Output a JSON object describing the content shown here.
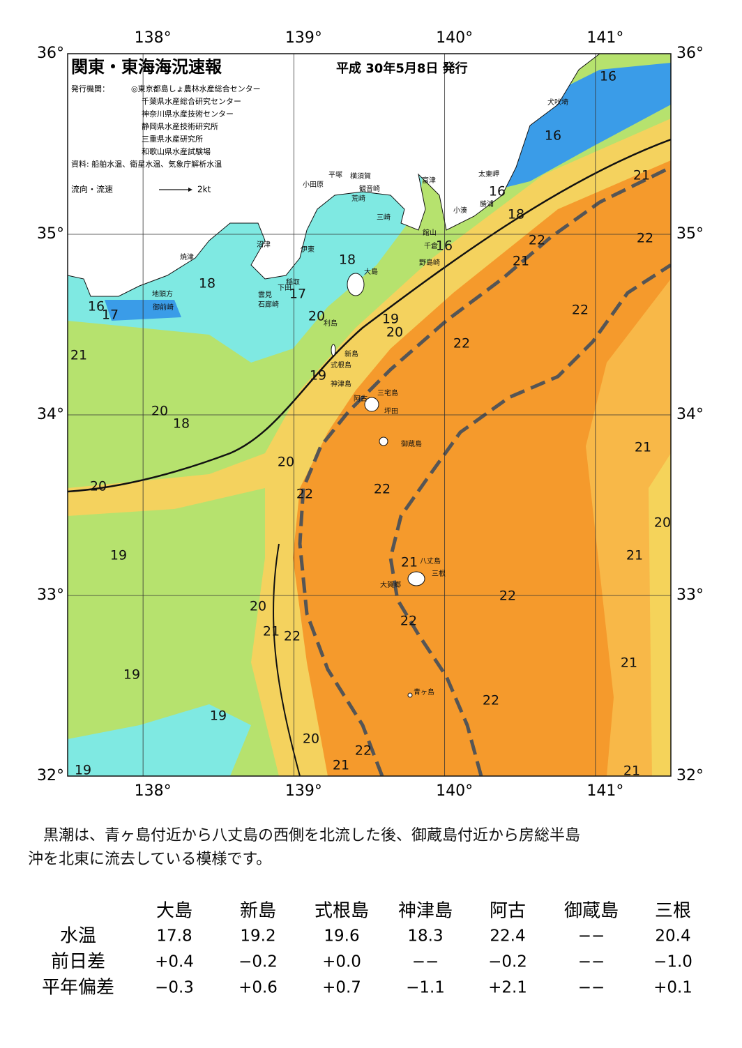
{
  "header": {
    "title": "関東・東海海況速報",
    "date": "平成 30年5月8日 発行",
    "issuer_label": "発行機関：",
    "issuers": [
      "◎東京都島しょ農林水産総合センター",
      "千葉県水産総合研究センター",
      "神奈川県水産技術センター",
      "静岡県水産技術研究所",
      "三重県水産研究所",
      "和歌山県水産試験場"
    ],
    "source": "資料: 船舶水温、衛星水温、気象庁解析水温",
    "legend_label": "流向・流速",
    "legend_speed": "2kt"
  },
  "map": {
    "lon_range": [
      137.5,
      141.5
    ],
    "lat_range": [
      32,
      36
    ],
    "lon_ticks": [
      {
        "value": 138,
        "label": "138°"
      },
      {
        "value": 139,
        "label": "139°"
      },
      {
        "value": 140,
        "label": "140°"
      },
      {
        "value": 141,
        "label": "141°"
      }
    ],
    "lat_ticks": [
      {
        "value": 36,
        "label": "36°"
      },
      {
        "value": 35,
        "label": "35°"
      },
      {
        "value": 34,
        "label": "34°"
      },
      {
        "value": 33,
        "label": "33°"
      },
      {
        "value": 32,
        "label": "32°"
      }
    ],
    "places": [
      "犬吠埼",
      "太東岬",
      "勝浦",
      "小湊",
      "館山",
      "千倉",
      "野島崎",
      "富津",
      "横須賀",
      "観音崎",
      "荒崎",
      "三崎",
      "平塚",
      "小田原",
      "沼津",
      "伊東",
      "焼津",
      "稲取",
      "下田",
      "雲見",
      "石廊崎",
      "地頭方",
      "御前崎",
      "大島",
      "利島",
      "新島",
      "式根島",
      "神津島",
      "三宅島",
      "阿古",
      "坪田",
      "御蔵島",
      "八丈島",
      "三根",
      "大賀郷",
      "青ヶ島"
    ],
    "isotherm_labels": [
      16,
      16,
      21,
      16,
      18,
      22,
      22,
      21,
      16,
      18,
      18,
      17,
      16,
      17,
      19,
      20,
      20,
      22,
      22,
      21,
      19,
      20,
      18,
      21,
      20,
      20,
      22,
      22,
      20,
      19,
      21,
      21,
      22,
      20,
      21,
      22,
      22,
      21,
      19,
      22,
      19,
      20,
      22,
      21,
      19,
      21
    ]
  },
  "text": {
    "paragraph": [
      "黒潮は、青ヶ島付近から八丈島の西側を北流した後、御蔵島付近から房総半島",
      "沖を北東に流去している模様です。"
    ]
  },
  "table": {
    "columns": [
      "大島",
      "新島",
      "式根島",
      "神津島",
      "阿古",
      "御蔵島",
      "三根"
    ],
    "rows": [
      {
        "label": "水温",
        "values": [
          "17.8",
          "19.2",
          "19.6",
          "18.3",
          "22.4",
          "−−",
          "20.4"
        ]
      },
      {
        "label": "前日差",
        "values": [
          "+0.4",
          "−0.2",
          "+0.0",
          "−−",
          "−0.2",
          "−−",
          "−1.0"
        ]
      },
      {
        "label": "平年偏差",
        "values": [
          "−0.3",
          "+0.6",
          "+0.7",
          "−1.1",
          "+2.1",
          "−−",
          "+0.1"
        ]
      }
    ]
  }
}
